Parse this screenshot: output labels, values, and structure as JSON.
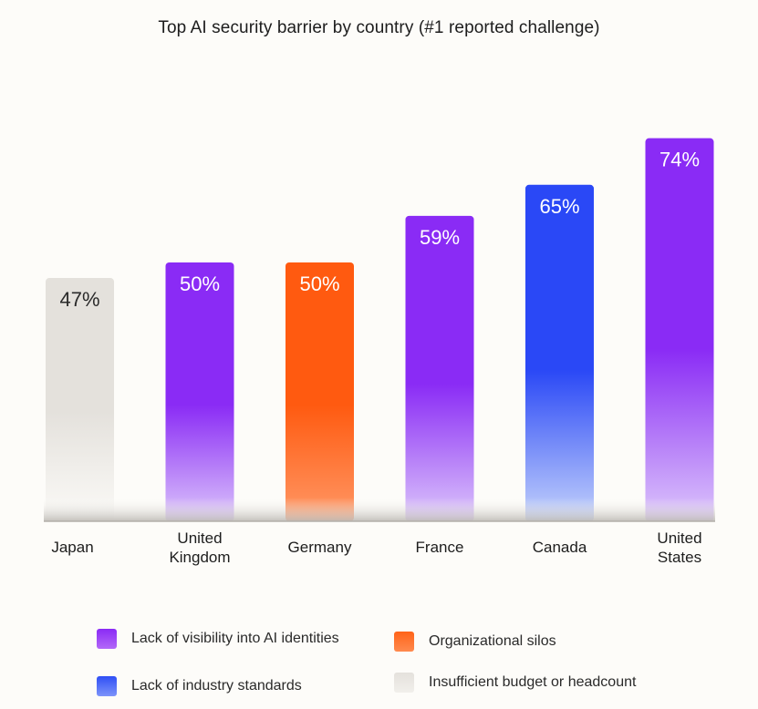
{
  "chart_data": {
    "type": "bar",
    "title": "Top AI security barrier by country (#1 reported challenge)",
    "categories": [
      [
        "Japan"
      ],
      [
        "United",
        "Kingdom"
      ],
      [
        "Germany"
      ],
      [
        "France"
      ],
      [
        "Canada"
      ],
      [
        "United",
        "States"
      ]
    ],
    "values": [
      47,
      50,
      50,
      59,
      65,
      74
    ],
    "value_labels": [
      "47%",
      "50%",
      "50%",
      "59%",
      "65%",
      "74%"
    ],
    "barrier": [
      "budget",
      "visibility",
      "silos",
      "visibility",
      "standards",
      "visibility"
    ],
    "legend": [
      {
        "key": "visibility",
        "label": "Lack of visibility into AI identities",
        "color": "#8a2bf5"
      },
      {
        "key": "silos",
        "label": "Organizational silos",
        "color": "#ff6319"
      },
      {
        "key": "standards",
        "label": "Lack of industry standards",
        "color": "#2f4ff5"
      },
      {
        "key": "budget",
        "label": "Insufficient budget or headcount",
        "color": "#e4e1dc"
      }
    ],
    "colors": {
      "visibility": {
        "top": "#8a2bf5",
        "bottom": "#dcc6fb",
        "text": "#ffffff"
      },
      "silos": {
        "top": "#ff5a10",
        "bottom": "#ff9866",
        "text": "#ffffff"
      },
      "standards": {
        "top": "#2a48f6",
        "bottom": "#c4d2fb",
        "text": "#ffffff"
      },
      "budget": {
        "top": "#e4e1dc",
        "bottom": "#fbfaf7",
        "text": "#2a2a2a"
      }
    },
    "ylim": [
      0,
      80
    ],
    "legend_position": "bottom",
    "grid": false
  }
}
